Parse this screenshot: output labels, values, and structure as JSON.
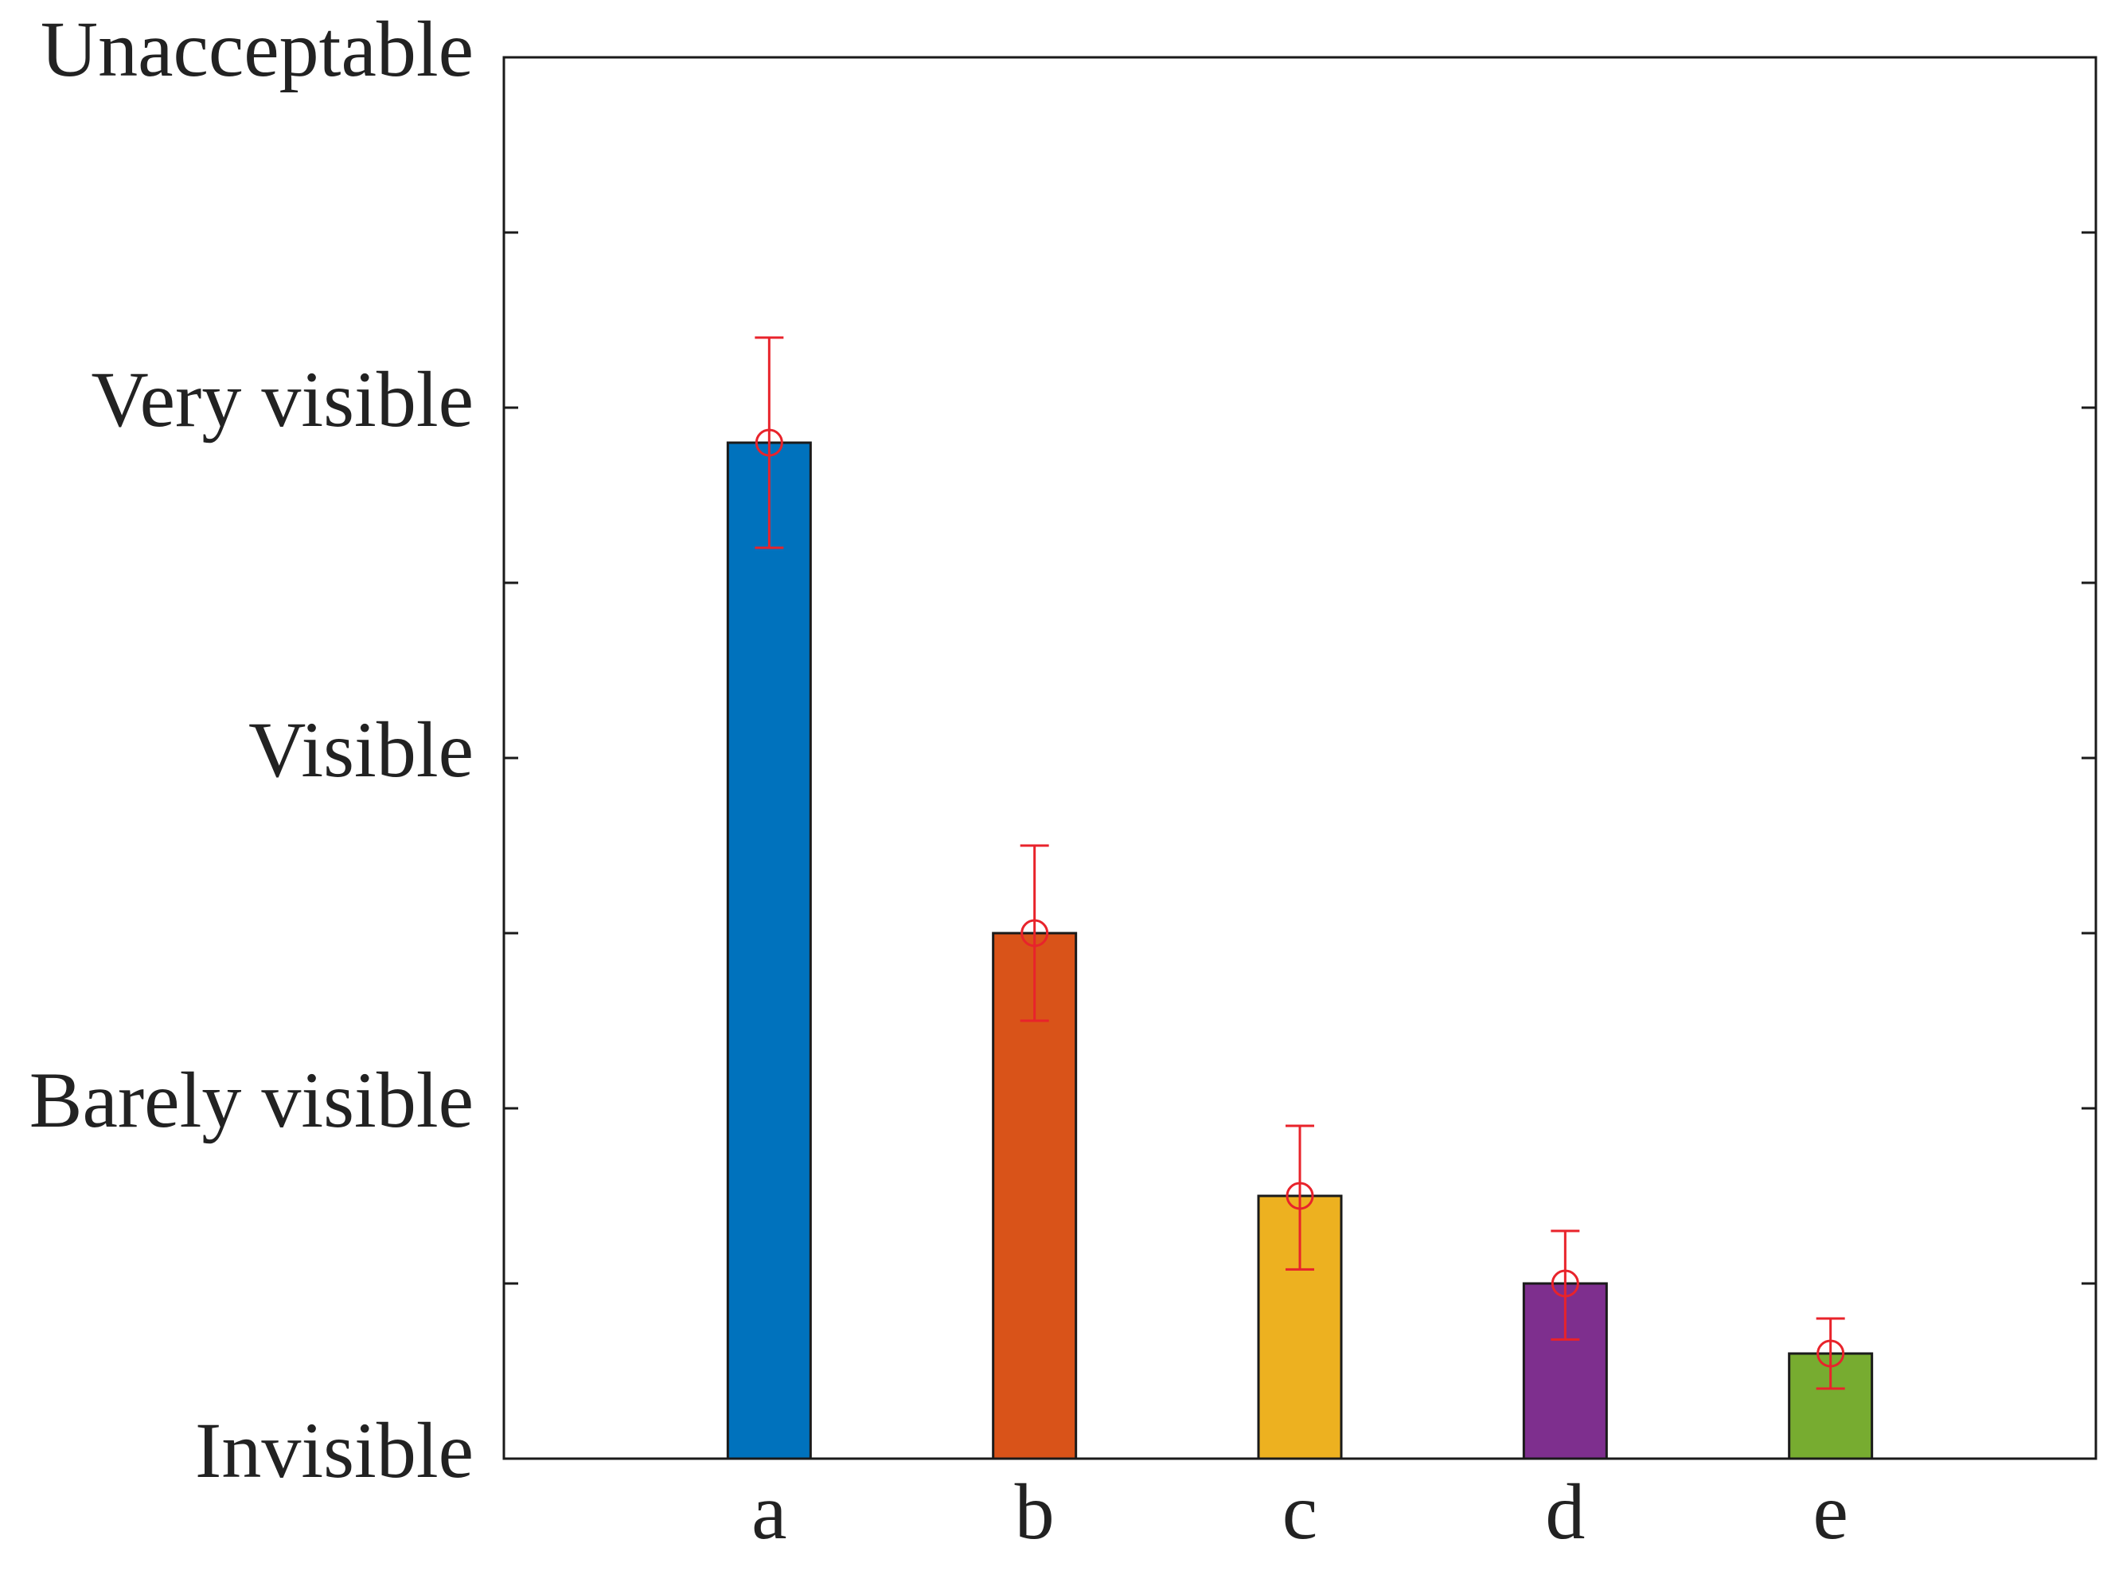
{
  "chart_data": {
    "type": "bar",
    "title": "",
    "xlabel": "",
    "ylabel": "",
    "categories": [
      "a",
      "b",
      "c",
      "d",
      "e"
    ],
    "values": [
      2.9,
      1.5,
      0.75,
      0.5,
      0.3
    ],
    "error_low": [
      2.6,
      1.25,
      0.54,
      0.34,
      0.2
    ],
    "error_high": [
      3.2,
      1.75,
      0.95,
      0.65,
      0.4
    ],
    "bar_colors": [
      "#0072BD",
      "#D95319",
      "#EDB120",
      "#7E2F8E",
      "#77AC30"
    ],
    "errorbar_color": "#E8232B",
    "ylim": [
      0,
      4
    ],
    "yticks": [
      0,
      1,
      2,
      3,
      4
    ],
    "ytick_labels": [
      "Invisible",
      "Barely visible",
      "Visible",
      "Very visible",
      "Unacceptable"
    ],
    "minor_yticks": [
      0.5,
      1.5,
      2.5,
      3.5
    ],
    "grid": false,
    "legend": null
  }
}
